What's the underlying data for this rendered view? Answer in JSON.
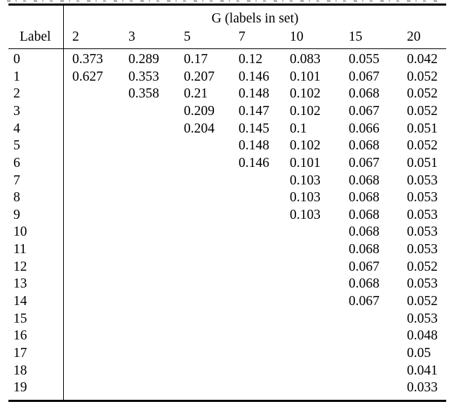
{
  "colors": {
    "background": "#ffffff",
    "text": "#000000",
    "rule": "#000000"
  },
  "table": {
    "group_header": "G (labels in set)",
    "label_col_header": "Label",
    "col_headers": [
      "2",
      "3",
      "5",
      "7",
      "10",
      "15",
      "20"
    ],
    "rows": [
      {
        "label": "0",
        "values": [
          "0.373",
          "0.289",
          "0.17",
          "0.12",
          "0.083",
          "0.055",
          "0.042"
        ]
      },
      {
        "label": "1",
        "values": [
          "0.627",
          "0.353",
          "0.207",
          "0.146",
          "0.101",
          "0.067",
          "0.052"
        ]
      },
      {
        "label": "2",
        "values": [
          "",
          "0.358",
          "0.21",
          "0.148",
          "0.102",
          "0.068",
          "0.052"
        ]
      },
      {
        "label": "3",
        "values": [
          "",
          "",
          "0.209",
          "0.147",
          "0.102",
          "0.067",
          "0.052"
        ]
      },
      {
        "label": "4",
        "values": [
          "",
          "",
          "0.204",
          "0.145",
          "0.1",
          "0.066",
          "0.051"
        ]
      },
      {
        "label": "5",
        "values": [
          "",
          "",
          "",
          "0.148",
          "0.102",
          "0.068",
          "0.052"
        ]
      },
      {
        "label": "6",
        "values": [
          "",
          "",
          "",
          "0.146",
          "0.101",
          "0.067",
          "0.051"
        ]
      },
      {
        "label": "7",
        "values": [
          "",
          "",
          "",
          "",
          "0.103",
          "0.068",
          "0.053"
        ]
      },
      {
        "label": "8",
        "values": [
          "",
          "",
          "",
          "",
          "0.103",
          "0.068",
          "0.053"
        ]
      },
      {
        "label": "9",
        "values": [
          "",
          "",
          "",
          "",
          "0.103",
          "0.068",
          "0.053"
        ]
      },
      {
        "label": "10",
        "values": [
          "",
          "",
          "",
          "",
          "",
          "0.068",
          "0.053"
        ]
      },
      {
        "label": "11",
        "values": [
          "",
          "",
          "",
          "",
          "",
          "0.068",
          "0.053"
        ]
      },
      {
        "label": "12",
        "values": [
          "",
          "",
          "",
          "",
          "",
          "0.067",
          "0.052"
        ]
      },
      {
        "label": "13",
        "values": [
          "",
          "",
          "",
          "",
          "",
          "0.068",
          "0.053"
        ]
      },
      {
        "label": "14",
        "values": [
          "",
          "",
          "",
          "",
          "",
          "0.067",
          "0.052"
        ]
      },
      {
        "label": "15",
        "values": [
          "",
          "",
          "",
          "",
          "",
          "",
          "0.053"
        ]
      },
      {
        "label": "16",
        "values": [
          "",
          "",
          "",
          "",
          "",
          "",
          "0.048"
        ]
      },
      {
        "label": "17",
        "values": [
          "",
          "",
          "",
          "",
          "",
          "",
          "0.05"
        ]
      },
      {
        "label": "18",
        "values": [
          "",
          "",
          "",
          "",
          "",
          "",
          "0.041"
        ]
      },
      {
        "label": "19",
        "values": [
          "",
          "",
          "",
          "",
          "",
          "",
          "0.033"
        ]
      }
    ]
  }
}
